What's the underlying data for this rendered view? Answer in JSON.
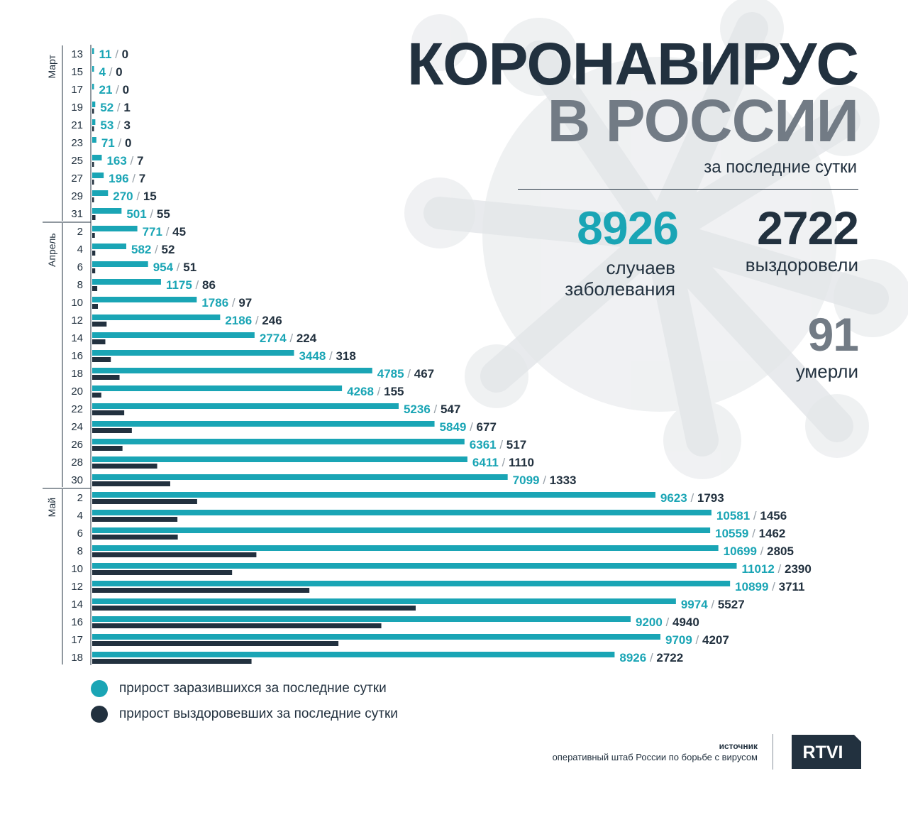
{
  "header": {
    "title_line1": "КОРОНАВИРУС",
    "title_line2": "В РОССИИ",
    "subtitle": "за последние сутки"
  },
  "stats": {
    "cases_value": "8926",
    "cases_label_1": "случаев",
    "cases_label_2": "заболевания",
    "recovered_value": "2722",
    "recovered_label": "выздоровели",
    "deaths_value": "91",
    "deaths_label": "умерли"
  },
  "colors": {
    "infected": "#1aa5b5",
    "recovered": "#22313f",
    "accent_gray": "#727b85"
  },
  "chart_data": {
    "type": "bar",
    "orientation": "horizontal",
    "months": [
      {
        "label": "Март",
        "from": 0,
        "to": 9
      },
      {
        "label": "Апрель",
        "from": 10,
        "to": 24
      },
      {
        "label": "Май",
        "from": 25,
        "to": 34
      }
    ],
    "categories": [
      "13",
      "15",
      "17",
      "19",
      "21",
      "23",
      "25",
      "27",
      "29",
      "31",
      "2",
      "4",
      "6",
      "8",
      "10",
      "12",
      "14",
      "16",
      "18",
      "20",
      "22",
      "24",
      "26",
      "28",
      "30",
      "2",
      "4",
      "6",
      "8",
      "10",
      "12",
      "14",
      "16",
      "17",
      "18"
    ],
    "series": [
      {
        "name": "прирост заразившихся за последние сутки",
        "color": "#1aa5b5",
        "values": [
          11,
          4,
          21,
          52,
          53,
          71,
          163,
          196,
          270,
          501,
          771,
          582,
          954,
          1175,
          1786,
          2186,
          2774,
          3448,
          4785,
          4268,
          5236,
          5849,
          6361,
          6411,
          7099,
          9623,
          10581,
          10559,
          10699,
          11012,
          10899,
          9974,
          9200,
          9709,
          8926
        ]
      },
      {
        "name": "прирост выздоровевших за последние сутки",
        "color": "#22313f",
        "values": [
          0,
          0,
          0,
          1,
          3,
          0,
          7,
          7,
          15,
          55,
          45,
          52,
          51,
          86,
          97,
          246,
          224,
          318,
          467,
          155,
          547,
          677,
          517,
          1110,
          1333,
          1793,
          1456,
          1462,
          2805,
          2390,
          3711,
          5527,
          4940,
          4207,
          2722
        ]
      }
    ],
    "separator": "/"
  },
  "legend": {
    "infected": "прирост заразившихся за последние сутки",
    "recovered": "прирост выздоровевших за последние сутки"
  },
  "source": {
    "heading": "источник",
    "text": "оперативный штаб России по борьбе с вирусом"
  },
  "logo": {
    "text": "RTVI"
  }
}
